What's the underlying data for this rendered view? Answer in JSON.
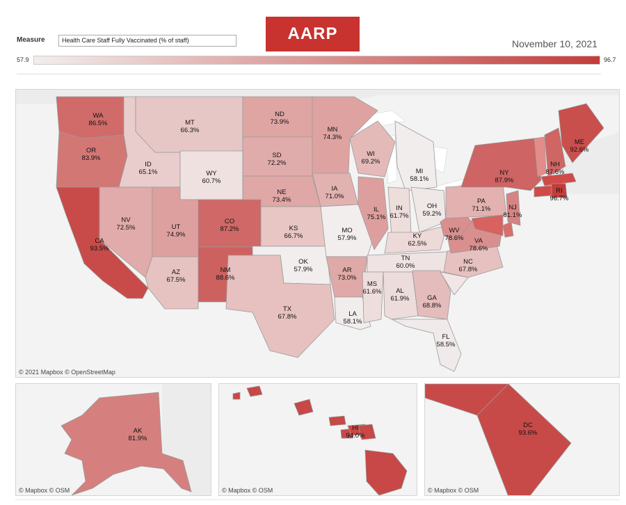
{
  "header": {
    "measure_label": "Measure",
    "measure_value": "Health Care Staff Fully Vaccinated (% of staff)",
    "logo_text": "AARP",
    "date": "November 10, 2021"
  },
  "legend": {
    "min": "57.9",
    "max": "96.7",
    "min_color": "#f1eeed",
    "max_color": "#c43c3a"
  },
  "credits": {
    "main": "© 2021 Mapbox © OpenStreetMap",
    "inset": "© Mapbox © OSM"
  },
  "states": [
    {
      "code": "WA",
      "value": "86.5%"
    },
    {
      "code": "OR",
      "value": "83.9%"
    },
    {
      "code": "CA",
      "value": "93.5%"
    },
    {
      "code": "ID",
      "value": "65.1%"
    },
    {
      "code": "NV",
      "value": "72.5%"
    },
    {
      "code": "MT",
      "value": "66.3%"
    },
    {
      "code": "WY",
      "value": "60.7%"
    },
    {
      "code": "UT",
      "value": "74.9%"
    },
    {
      "code": "AZ",
      "value": "67.5%"
    },
    {
      "code": "CO",
      "value": "87.2%"
    },
    {
      "code": "NM",
      "value": "88.6%"
    },
    {
      "code": "ND",
      "value": "73.9%"
    },
    {
      "code": "SD",
      "value": "72.2%"
    },
    {
      "code": "NE",
      "value": "73.4%"
    },
    {
      "code": "KS",
      "value": "66.7%"
    },
    {
      "code": "OK",
      "value": "57.9%"
    },
    {
      "code": "TX",
      "value": "67.8%"
    },
    {
      "code": "MN",
      "value": "74.3%"
    },
    {
      "code": "IA",
      "value": "71.0%"
    },
    {
      "code": "MO",
      "value": "57.9%"
    },
    {
      "code": "AR",
      "value": "73.0%"
    },
    {
      "code": "LA",
      "value": "58.1%"
    },
    {
      "code": "WI",
      "value": "69.2%"
    },
    {
      "code": "IL",
      "value": "75.1%"
    },
    {
      "code": "MI",
      "value": "58.1%"
    },
    {
      "code": "IN",
      "value": "61.7%"
    },
    {
      "code": "OH",
      "value": "59.2%"
    },
    {
      "code": "KY",
      "value": "62.5%"
    },
    {
      "code": "TN",
      "value": "60.0%"
    },
    {
      "code": "MS",
      "value": "61.6%"
    },
    {
      "code": "AL",
      "value": "61.9%"
    },
    {
      "code": "GA",
      "value": "68.8%"
    },
    {
      "code": "FL",
      "value": "58.5%"
    },
    {
      "code": "NC",
      "value": "67.8%"
    },
    {
      "code": "VA",
      "value": "78.6%"
    },
    {
      "code": "WV",
      "value": "78.6%"
    },
    {
      "code": "PA",
      "value": "71.1%"
    },
    {
      "code": "NY",
      "value": "87.9%"
    },
    {
      "code": "NJ",
      "value": "81.1%"
    },
    {
      "code": "NH",
      "value": "87.6%"
    },
    {
      "code": "ME",
      "value": "92.6%"
    },
    {
      "code": "RI",
      "value": "96.7%"
    },
    {
      "code": "AK",
      "value": "81.9%"
    },
    {
      "code": "HI",
      "value": "94.0%"
    },
    {
      "code": "DC",
      "value": "93.6%"
    }
  ]
}
